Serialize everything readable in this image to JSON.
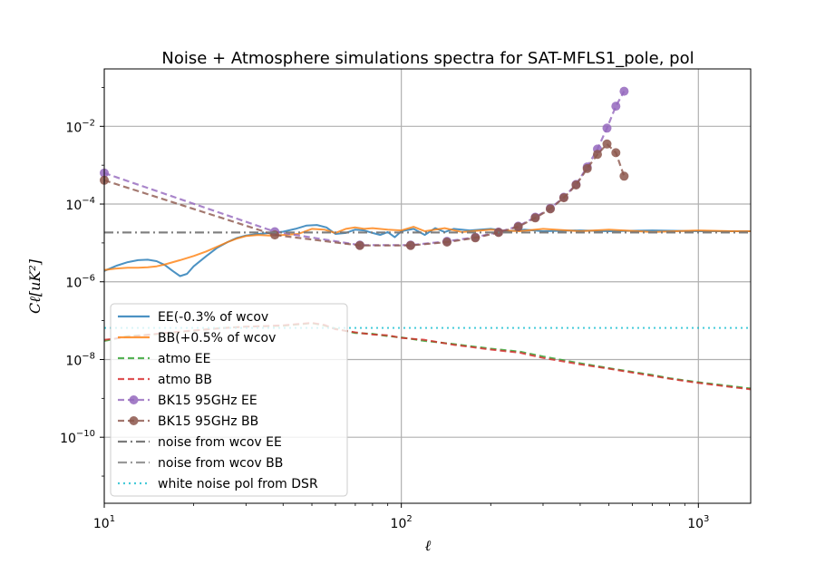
{
  "chart_data": {
    "type": "line",
    "title": "Noise + Atmosphere simulations spectra for SAT-MFLS1_pole, pol",
    "xlabel": "ℓ",
    "ylabel": "Cℓ[uK²]",
    "xscale": "log",
    "yscale": "log",
    "xlim": [
      10,
      1500
    ],
    "ylim": [
      2e-12,
      0.3
    ],
    "grid": true,
    "legend_position": "lower-left",
    "x_ticks": [
      {
        "value": 10,
        "base": "10",
        "exp": "1"
      },
      {
        "value": 100,
        "base": "10",
        "exp": "2"
      },
      {
        "value": 1000,
        "base": "10",
        "exp": "3"
      }
    ],
    "y_ticks": [
      {
        "value": 1e-10,
        "base": "10",
        "exp": "−10"
      },
      {
        "value": 1e-08,
        "base": "10",
        "exp": "−8"
      },
      {
        "value": 1e-06,
        "base": "10",
        "exp": "−6"
      },
      {
        "value": 0.0001,
        "base": "10",
        "exp": "−4"
      },
      {
        "value": 0.01,
        "base": "10",
        "exp": "−2"
      }
    ],
    "series": [
      {
        "name": "EE(-0.3% of wcov",
        "color": "#1f77b4",
        "style": "solid",
        "marker": false,
        "x": [
          10,
          11,
          12,
          13,
          14,
          15,
          16,
          17,
          18,
          19,
          20,
          22,
          24,
          26,
          28,
          30,
          33,
          36,
          40,
          44,
          48,
          52,
          56,
          60,
          65,
          70,
          75,
          80,
          85,
          90,
          95,
          100,
          110,
          120,
          130,
          140,
          150,
          170,
          200,
          230,
          260,
          300,
          400,
          500,
          700,
          1000,
          1300,
          1500
        ],
        "y": [
          1.9e-06,
          2.6e-06,
          3.2e-06,
          3.6e-06,
          3.7e-06,
          3.4e-06,
          2.7e-06,
          1.9e-06,
          1.4e-06,
          1.6e-06,
          2.5e-06,
          4.5e-06,
          7.5e-06,
          1.05e-05,
          1.35e-05,
          1.55e-05,
          1.7e-05,
          1.8e-05,
          1.95e-05,
          2.3e-05,
          2.8e-05,
          2.9e-05,
          2.5e-05,
          1.7e-05,
          1.8e-05,
          2.2e-05,
          2.1e-05,
          1.8e-05,
          1.6e-05,
          1.9e-05,
          1.4e-05,
          2e-05,
          2.3e-05,
          1.6e-05,
          2.4e-05,
          1.9e-05,
          2.3e-05,
          2.1e-05,
          2.3e-05,
          2e-05,
          2.2e-05,
          2e-05,
          2.1e-05,
          2e-05,
          2.1e-05,
          2e-05,
          2e-05,
          2e-05
        ]
      },
      {
        "name": "BB(+0.5% of wcov",
        "color": "#ff7f0e",
        "style": "solid",
        "marker": false,
        "x": [
          10,
          11,
          12,
          13,
          14,
          15,
          16,
          18,
          20,
          22,
          24,
          26,
          28,
          30,
          33,
          36,
          40,
          45,
          50,
          55,
          60,
          65,
          70,
          75,
          80,
          90,
          100,
          110,
          120,
          140,
          160,
          200,
          250,
          300,
          400,
          500,
          700,
          1000,
          1300,
          1500
        ],
        "y": [
          2e-06,
          2.2e-06,
          2.3e-06,
          2.3e-06,
          2.35e-06,
          2.5e-06,
          2.8e-06,
          3.6e-06,
          4.6e-06,
          6e-06,
          8e-06,
          1.05e-05,
          1.3e-05,
          1.5e-05,
          1.6e-05,
          1.55e-05,
          1.6e-05,
          1.7e-05,
          2.3e-05,
          2.2e-05,
          1.8e-05,
          2.3e-05,
          2.5e-05,
          2.3e-05,
          2.4e-05,
          2.2e-05,
          2.1e-05,
          2.6e-05,
          2e-05,
          2.4e-05,
          1.9e-05,
          2.2e-05,
          2e-05,
          2.3e-05,
          2e-05,
          2.2e-05,
          1.9e-05,
          2.1e-05,
          2e-05,
          2e-05
        ]
      },
      {
        "name": "atmo EE",
        "color": "#2ca02c",
        "style": "dashed",
        "marker": false,
        "x": [
          10,
          12,
          15,
          20,
          25,
          30,
          35,
          40,
          45,
          50,
          55,
          60,
          70,
          80,
          90,
          100,
          120,
          150,
          200,
          250,
          300,
          400,
          500,
          600,
          700,
          800,
          1000,
          1200,
          1500
        ],
        "y": [
          3e-08,
          4e-08,
          4.5e-08,
          5.5e-08,
          6.5e-08,
          7e-08,
          7.2e-08,
          7.4e-08,
          8e-08,
          8.6e-08,
          7.5e-08,
          6.2e-08,
          4.8e-08,
          4.6e-08,
          4e-08,
          3.7e-08,
          3e-08,
          2.5e-08,
          1.9e-08,
          1.6e-08,
          1.2e-08,
          8e-09,
          6e-09,
          4.8e-09,
          4e-09,
          3.3e-09,
          2.6e-09,
          2.2e-09,
          1.8e-09
        ]
      },
      {
        "name": "atmo BB",
        "color": "#d62728",
        "style": "dashed",
        "marker": false,
        "x": [
          10,
          12,
          15,
          20,
          25,
          30,
          35,
          40,
          45,
          50,
          55,
          60,
          70,
          80,
          90,
          100,
          120,
          150,
          200,
          250,
          300,
          400,
          500,
          600,
          700,
          800,
          1000,
          1200,
          1500
        ],
        "y": [
          3.2e-08,
          3.8e-08,
          4.6e-08,
          5.6e-08,
          6.4e-08,
          7e-08,
          7.3e-08,
          7.6e-08,
          8.2e-08,
          8.8e-08,
          7.8e-08,
          6e-08,
          5e-08,
          4.4e-08,
          4.2e-08,
          3.6e-08,
          3.2e-08,
          2.4e-08,
          1.8e-08,
          1.5e-08,
          1.1e-08,
          7.5e-09,
          5.8e-09,
          4.6e-09,
          3.8e-09,
          3.2e-09,
          2.5e-09,
          2.1e-09,
          1.7e-09
        ]
      },
      {
        "name": "BK15 95GHz EE",
        "color": "#9467bd",
        "style": "dashed",
        "marker": true,
        "x": [
          10,
          37.5,
          72.5,
          107.5,
          142.5,
          177.5,
          212.5,
          247.5,
          282.5,
          317.5,
          352.5,
          387.5,
          422.5,
          457.5,
          492.5,
          527.5,
          562.5
        ],
        "y": [
          0.00063,
          1.95e-05,
          8.8e-06,
          8.8e-06,
          1.1e-05,
          1.4e-05,
          1.9e-05,
          2.7e-05,
          4.6e-05,
          7.8e-05,
          0.00015,
          0.00032,
          0.0009,
          0.0026,
          0.009,
          0.033,
          0.08
        ]
      },
      {
        "name": "BK15 95GHz BB",
        "color": "#8c564b",
        "style": "dashed",
        "marker": true,
        "x": [
          10,
          37.5,
          72.5,
          107.5,
          142.5,
          177.5,
          212.5,
          247.5,
          282.5,
          317.5,
          352.5,
          387.5,
          422.5,
          457.5,
          492.5,
          527.5,
          562.5
        ],
        "y": [
          0.00041,
          1.6e-05,
          8.6e-06,
          8.6e-06,
          1.05e-05,
          1.35e-05,
          1.85e-05,
          2.6e-05,
          4.4e-05,
          7.5e-05,
          0.000145,
          0.00031,
          0.00082,
          0.0019,
          0.0035,
          0.0021,
          0.00052
        ]
      },
      {
        "name": "noise from wcov EE",
        "color": "#595959",
        "style": "dashdot",
        "marker": false,
        "x": [
          10,
          1500
        ],
        "y": [
          1.85e-05,
          1.85e-05
        ]
      },
      {
        "name": "noise from wcov BB",
        "color": "#7f7f7f",
        "style": "dashdot",
        "marker": false,
        "x": [
          10,
          1500
        ],
        "y": [
          1.85e-05,
          1.85e-05
        ]
      },
      {
        "name": "white noise pol from DSR",
        "color": "#17becf",
        "style": "dotted",
        "marker": false,
        "x": [
          10,
          1500
        ],
        "y": [
          6.5e-08,
          6.5e-08
        ]
      }
    ]
  }
}
